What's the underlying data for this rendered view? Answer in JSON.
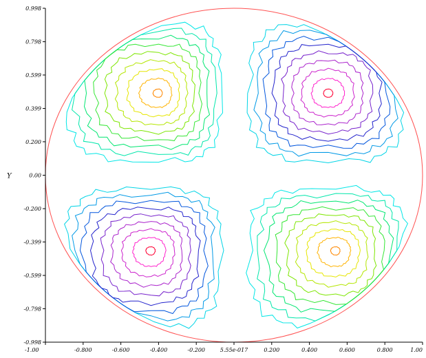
{
  "chart_data": {
    "type": "contour",
    "title": "",
    "xlabel": "",
    "ylabel": "Y",
    "xlim": [
      -1.0,
      1.0
    ],
    "ylim": [
      -0.998,
      0.998
    ],
    "domain": "unit disk",
    "x_tick_labels": [
      "-1.00",
      "-0.800",
      "-0.600",
      "-0.400",
      "-0.200",
      "5.55e-017",
      "0.200",
      "0.400",
      "0.600",
      "0.800",
      "1.00"
    ],
    "x_tick_values": [
      -1.0,
      -0.8,
      -0.6,
      -0.4,
      -0.2,
      0.0,
      0.2,
      0.4,
      0.6,
      0.8,
      1.0
    ],
    "y_tick_labels": [
      "0.998",
      "0.798",
      "0.599",
      "0.399",
      "0.200",
      "0.00",
      "-0.200",
      "-0.399",
      "-0.599",
      "-0.798",
      "-0.998"
    ],
    "y_tick_values": [
      0.998,
      0.798,
      0.599,
      0.399,
      0.2,
      0.0,
      -0.2,
      -0.399,
      -0.599,
      -0.798,
      -0.998
    ],
    "field": "sign(-x*y) * r^2 * (1 - r^2)",
    "lobes": [
      {
        "quadrant": "upper-left",
        "center": [
          -0.4,
          0.49
        ],
        "peak_color": "#ffff00"
      },
      {
        "quadrant": "upper-right",
        "center": [
          0.5,
          0.49
        ],
        "peak_color": "#ff00ff"
      },
      {
        "quadrant": "lower-left",
        "center": [
          -0.44,
          -0.45
        ],
        "peak_color": "#ff0033"
      },
      {
        "quadrant": "lower-right",
        "center": [
          0.54,
          -0.45
        ],
        "peak_color": "#ff8800"
      }
    ],
    "levels": [
      0.02,
      0.05,
      0.08,
      0.11,
      0.14,
      0.17,
      0.2,
      0.23,
      0.255
    ],
    "positive_colors": [
      "#00e6e6",
      "#00e6aa",
      "#00e670",
      "#33e633",
      "#7de600",
      "#b4e600",
      "#e6e600",
      "#ffb300",
      "#ff8800"
    ],
    "negative_colors": [
      "#00d4e6",
      "#0099e6",
      "#0055dd",
      "#2222cc",
      "#7722cc",
      "#aa22cc",
      "#cc22cc",
      "#ff22cc",
      "#ff0033"
    ],
    "boundary_color": "#ff5050",
    "grid": false,
    "legend": "none"
  }
}
